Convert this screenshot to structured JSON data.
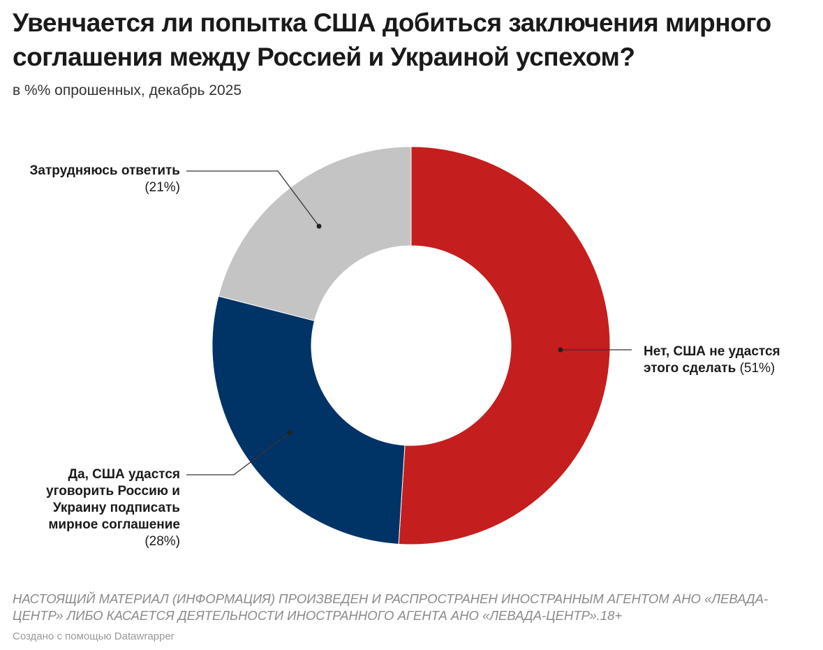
{
  "title": "Увенчается ли попытка США добиться заключения мирного соглашения между Россией и Украиной успехом?",
  "subtitle": "в %% опрошенных, декабрь 2025",
  "chart_data": {
    "type": "pie",
    "donut": true,
    "slices": [
      {
        "label": "Нет, США не удастся этого сделать",
        "value": 51,
        "value_label": "(51%)",
        "color": "#c41e1e"
      },
      {
        "label": "Да, США удастся уговорить Россию и Украину подписать мирное соглашение",
        "value": 28,
        "value_label": "(28%)",
        "color": "#003366"
      },
      {
        "label": "Затрудняюсь ответить",
        "value": 21,
        "value_label": "(21%)",
        "color": "#c4c4c4"
      }
    ]
  },
  "labels": {
    "no_line1": "Нет, США не удастся",
    "no_line2": "этого сделать",
    "yes_lines": [
      "Да, США удастся",
      "уговорить Россию и",
      "Украину подписать",
      "мирное соглашение"
    ]
  },
  "notes": "НАСТОЯЩИЙ МАТЕРИАЛ (ИНФОРМАЦИЯ) ПРОИЗВЕДЕН И РАСПРОСТРАНЕН ИНОСТРАННЫМ АГЕНТОМ АНО «ЛЕВАДА-ЦЕНТР» ЛИБО КАСАЕТСЯ ДЕЯТЕЛЬНОСТИ ИНОСТРАННОГО АГЕНТА АНО «ЛЕВАДА-ЦЕНТР».18+",
  "credit": "Создано с помощью Datawrapper"
}
